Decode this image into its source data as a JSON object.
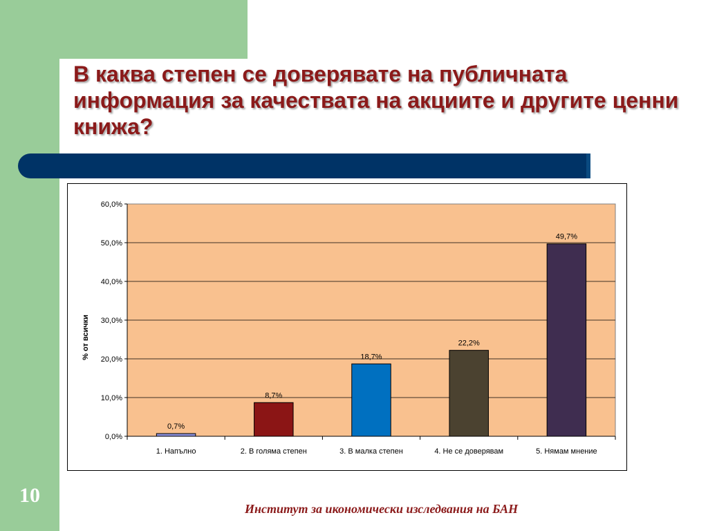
{
  "slide": {
    "title": "В каква степен се доверявате на публичната информация за качествата на акциите и другите ценни книжа?",
    "number": "10",
    "footer": "Институт за икономически изследвания на БАН"
  },
  "colors": {
    "green_band": "#99cc99",
    "title": "#8b1a1a",
    "title_bar": "#003366",
    "plot_bg": "#f9c18f"
  },
  "chart_data": {
    "type": "bar",
    "title": "",
    "xlabel": "",
    "ylabel": "% от всички",
    "ylim": [
      0,
      60
    ],
    "yticks": [
      "0,0%",
      "10,0%",
      "20,0%",
      "30,0%",
      "40,0%",
      "50,0%",
      "60,0%"
    ],
    "grid": true,
    "categories": [
      "1. Напълно",
      "2. В голяма степен",
      "3. В малка степен",
      "4. Не се доверявам",
      "5. Нямам мнение"
    ],
    "values": [
      0.7,
      8.7,
      18.7,
      22.2,
      49.7
    ],
    "data_labels": [
      "0,7%",
      "8,7%",
      "18,7%",
      "22,2%",
      "49,7%"
    ],
    "colors": [
      "#8b8fd9",
      "#8b1515",
      "#0070c0",
      "#4b4230",
      "#3f2d50"
    ]
  }
}
